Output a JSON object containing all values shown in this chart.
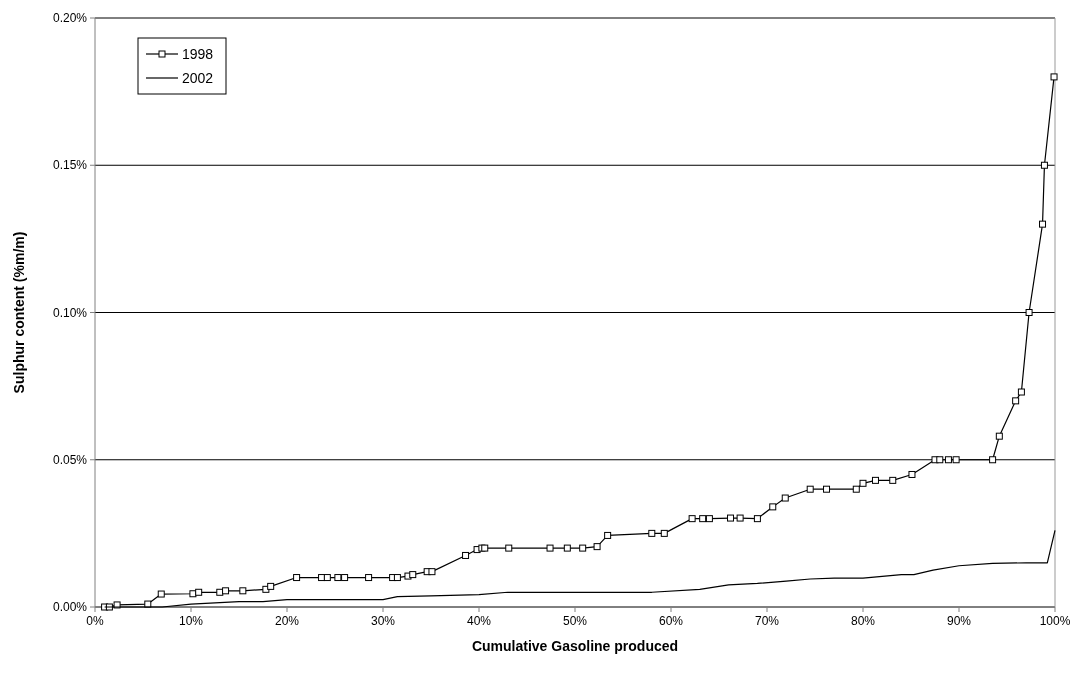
{
  "chart_data": {
    "type": "line",
    "xlabel": "Cumulative Gasoline produced",
    "ylabel": "Sulphur content (%m/m)",
    "xlim": [
      0,
      100
    ],
    "xticks": [
      {
        "value": 0,
        "label": "0%"
      },
      {
        "value": 10,
        "label": "10%"
      },
      {
        "value": 20,
        "label": "20%"
      },
      {
        "value": 30,
        "label": "30%"
      },
      {
        "value": 40,
        "label": "40%"
      },
      {
        "value": 50,
        "label": "50%"
      },
      {
        "value": 60,
        "label": "60%"
      },
      {
        "value": 70,
        "label": "70%"
      },
      {
        "value": 80,
        "label": "80%"
      },
      {
        "value": 90,
        "label": "90%"
      },
      {
        "value": 100,
        "label": "100%"
      }
    ],
    "ylim": [
      0,
      0.2
    ],
    "yticks": [
      {
        "value": 0,
        "label": "0.00%"
      },
      {
        "value": 0.05,
        "label": "0.05%"
      },
      {
        "value": 0.1,
        "label": "0.10%"
      },
      {
        "value": 0.15,
        "label": "0.15%"
      },
      {
        "value": 0.2,
        "label": "0.20%"
      }
    ],
    "grid": "y",
    "legend": "top left",
    "line_style": "solid",
    "series": [
      {
        "name": "1998",
        "color": "#000000",
        "marker": "square",
        "x": [
          1.0,
          1.5,
          2.3,
          5.5,
          6.9,
          10.2,
          10.8,
          13,
          13.6,
          15.4,
          17.8,
          18.3,
          21,
          23.6,
          24.2,
          25.3,
          26,
          28.5,
          31,
          31.5,
          32.6,
          33.1,
          34.6,
          35.1,
          38.6,
          39.8,
          40.3,
          40.6,
          43.1,
          47.4,
          49.2,
          50.8,
          52.3,
          53.4,
          58,
          59.3,
          62.2,
          63.3,
          64,
          66.2,
          67.2,
          69.0,
          70.6,
          71.9,
          74.5,
          76.2,
          79.3,
          80,
          81.3,
          83.1,
          85.1,
          87.5,
          88.0,
          88.9,
          89.7,
          93.5,
          94.2,
          95.9,
          96.5,
          97.3,
          98.7,
          98.9,
          99.9
        ],
        "values": [
          0,
          0,
          0.0007,
          0.001,
          0.0044,
          0.0045,
          0.005,
          0.005,
          0.0055,
          0.0055,
          0.006,
          0.007,
          0.01,
          0.01,
          0.01,
          0.01,
          0.01,
          0.01,
          0.01,
          0.01,
          0.0105,
          0.011,
          0.012,
          0.012,
          0.0175,
          0.0195,
          0.02,
          0.02,
          0.02,
          0.02,
          0.02,
          0.02,
          0.0205,
          0.0243,
          0.025,
          0.025,
          0.03,
          0.03,
          0.03,
          0.0302,
          0.0302,
          0.03,
          0.034,
          0.037,
          0.04,
          0.04,
          0.04,
          0.042,
          0.043,
          0.043,
          0.045,
          0.05,
          0.05,
          0.05,
          0.05,
          0.05,
          0.058,
          0.07,
          0.073,
          0.1,
          0.13,
          0.15,
          0.18
        ]
      },
      {
        "name": "2002",
        "color": "#000000",
        "marker": "none",
        "x": [
          1,
          7,
          10,
          15,
          17.5,
          20,
          30,
          31.5,
          35,
          40,
          43,
          58,
          63,
          66,
          69,
          72,
          74.5,
          77,
          80,
          84,
          85.3,
          87.3,
          90,
          93.5,
          97,
          99.2,
          100
        ],
        "values": [
          0,
          0,
          0.001,
          0.0018,
          0.0018,
          0.0025,
          0.0025,
          0.0035,
          0.0038,
          0.0042,
          0.005,
          0.005,
          0.006,
          0.0075,
          0.008,
          0.0088,
          0.0095,
          0.0098,
          0.0098,
          0.011,
          0.011,
          0.0125,
          0.014,
          0.0148,
          0.015,
          0.015,
          0.026
        ]
      }
    ]
  }
}
